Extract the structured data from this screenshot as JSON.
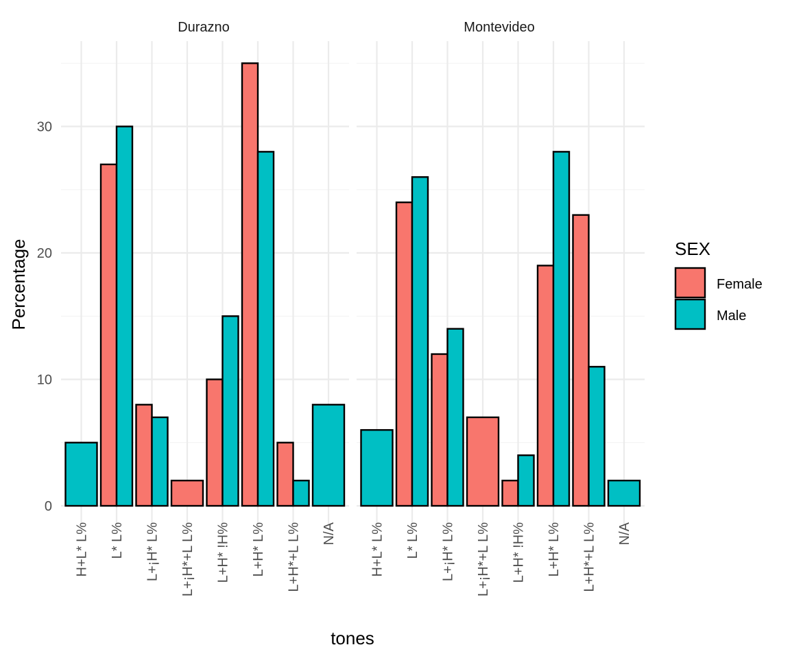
{
  "chart_data": {
    "type": "bar",
    "xlabel": "tones",
    "ylabel": "Percentage",
    "ylim": [
      0,
      35.5
    ],
    "yticks": [
      0,
      10,
      20,
      30
    ],
    "grid": true,
    "legend": {
      "title": "SEX",
      "position": "right",
      "entries": [
        {
          "name": "Female",
          "color": "#F8766D"
        },
        {
          "name": "Male",
          "color": "#00BFC4"
        }
      ]
    },
    "categories": [
      "H+L* L%",
      "L* L%",
      "L+¡H* L%",
      "L+¡H*+L L%",
      "L+H* !H%",
      "L+H* L%",
      "L+H*+L L%",
      "N/A"
    ],
    "panels": [
      {
        "title": "Durazno",
        "bars": [
          {
            "category": "H+L* L%",
            "series": "Male",
            "value": 5
          },
          {
            "category": "L* L%",
            "series": "Female",
            "value": 27
          },
          {
            "category": "L* L%",
            "series": "Male",
            "value": 30
          },
          {
            "category": "L+¡H* L%",
            "series": "Female",
            "value": 8
          },
          {
            "category": "L+¡H* L%",
            "series": "Male",
            "value": 7
          },
          {
            "category": "L+¡H*+L L%",
            "series": "Female",
            "value": 2
          },
          {
            "category": "L+H* !H%",
            "series": "Female",
            "value": 10
          },
          {
            "category": "L+H* !H%",
            "series": "Male",
            "value": 15
          },
          {
            "category": "L+H* L%",
            "series": "Female",
            "value": 35
          },
          {
            "category": "L+H* L%",
            "series": "Male",
            "value": 28
          },
          {
            "category": "L+H*+L L%",
            "series": "Female",
            "value": 5
          },
          {
            "category": "L+H*+L L%",
            "series": "Male",
            "value": 2
          },
          {
            "category": "N/A",
            "series": "Male",
            "value": 8
          }
        ]
      },
      {
        "title": "Montevideo",
        "bars": [
          {
            "category": "H+L* L%",
            "series": "Male",
            "value": 6
          },
          {
            "category": "L* L%",
            "series": "Female",
            "value": 24
          },
          {
            "category": "L* L%",
            "series": "Male",
            "value": 26
          },
          {
            "category": "L+¡H* L%",
            "series": "Female",
            "value": 12
          },
          {
            "category": "L+¡H* L%",
            "series": "Male",
            "value": 14
          },
          {
            "category": "L+¡H*+L L%",
            "series": "Female",
            "value": 7
          },
          {
            "category": "L+H* !H%",
            "series": "Female",
            "value": 2
          },
          {
            "category": "L+H* !H%",
            "series": "Male",
            "value": 4
          },
          {
            "category": "L+H* L%",
            "series": "Female",
            "value": 19
          },
          {
            "category": "L+H* L%",
            "series": "Male",
            "value": 28
          },
          {
            "category": "L+H*+L L%",
            "series": "Female",
            "value": 23
          },
          {
            "category": "L+H*+L L%",
            "series": "Male",
            "value": 11
          },
          {
            "category": "N/A",
            "series": "Male",
            "value": 2
          }
        ]
      }
    ]
  }
}
